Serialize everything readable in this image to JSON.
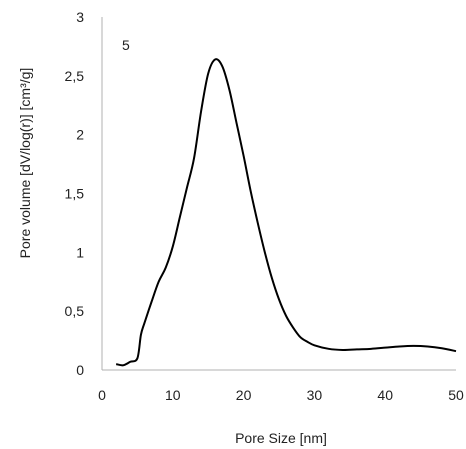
{
  "chart_data": {
    "type": "line",
    "title": "",
    "xlabel": "Pore Size [nm]",
    "ylabel": "Pore volume [dV/log(r)] [cm³/g]",
    "annotation": "5",
    "xlim": [
      0,
      50
    ],
    "ylim": [
      0,
      3
    ],
    "grid": false,
    "legend": "none",
    "line_color": "#000000",
    "x_ticks": [
      {
        "value": 0,
        "label": "0"
      },
      {
        "value": 10,
        "label": "10"
      },
      {
        "value": 20,
        "label": "20"
      },
      {
        "value": 30,
        "label": "30"
      },
      {
        "value": 40,
        "label": "40"
      },
      {
        "value": 50,
        "label": "50"
      }
    ],
    "y_ticks": [
      {
        "value": 0,
        "label": "0"
      },
      {
        "value": 0.5,
        "label": "0,5"
      },
      {
        "value": 1,
        "label": "1"
      },
      {
        "value": 1.5,
        "label": "1,5"
      },
      {
        "value": 2,
        "label": "2"
      },
      {
        "value": 2.5,
        "label": "2,5"
      },
      {
        "value": 3,
        "label": "3"
      }
    ],
    "series": [
      {
        "x": [
          2,
          3,
          4,
          5,
          5.5,
          6,
          7,
          8,
          9,
          10,
          11,
          12,
          13,
          14,
          15,
          16,
          17,
          18,
          19,
          20,
          21,
          22,
          23,
          24,
          25,
          26,
          27,
          28,
          29,
          30,
          32,
          34,
          36,
          38,
          40,
          42,
          44,
          46,
          48,
          50
        ],
        "y": [
          0.05,
          0.04,
          0.07,
          0.1,
          0.3,
          0.4,
          0.58,
          0.75,
          0.87,
          1.05,
          1.3,
          1.55,
          1.8,
          2.2,
          2.52,
          2.64,
          2.58,
          2.38,
          2.1,
          1.82,
          1.52,
          1.25,
          1.0,
          0.78,
          0.6,
          0.46,
          0.36,
          0.28,
          0.24,
          0.21,
          0.18,
          0.17,
          0.175,
          0.18,
          0.19,
          0.2,
          0.205,
          0.2,
          0.185,
          0.16
        ]
      }
    ]
  }
}
